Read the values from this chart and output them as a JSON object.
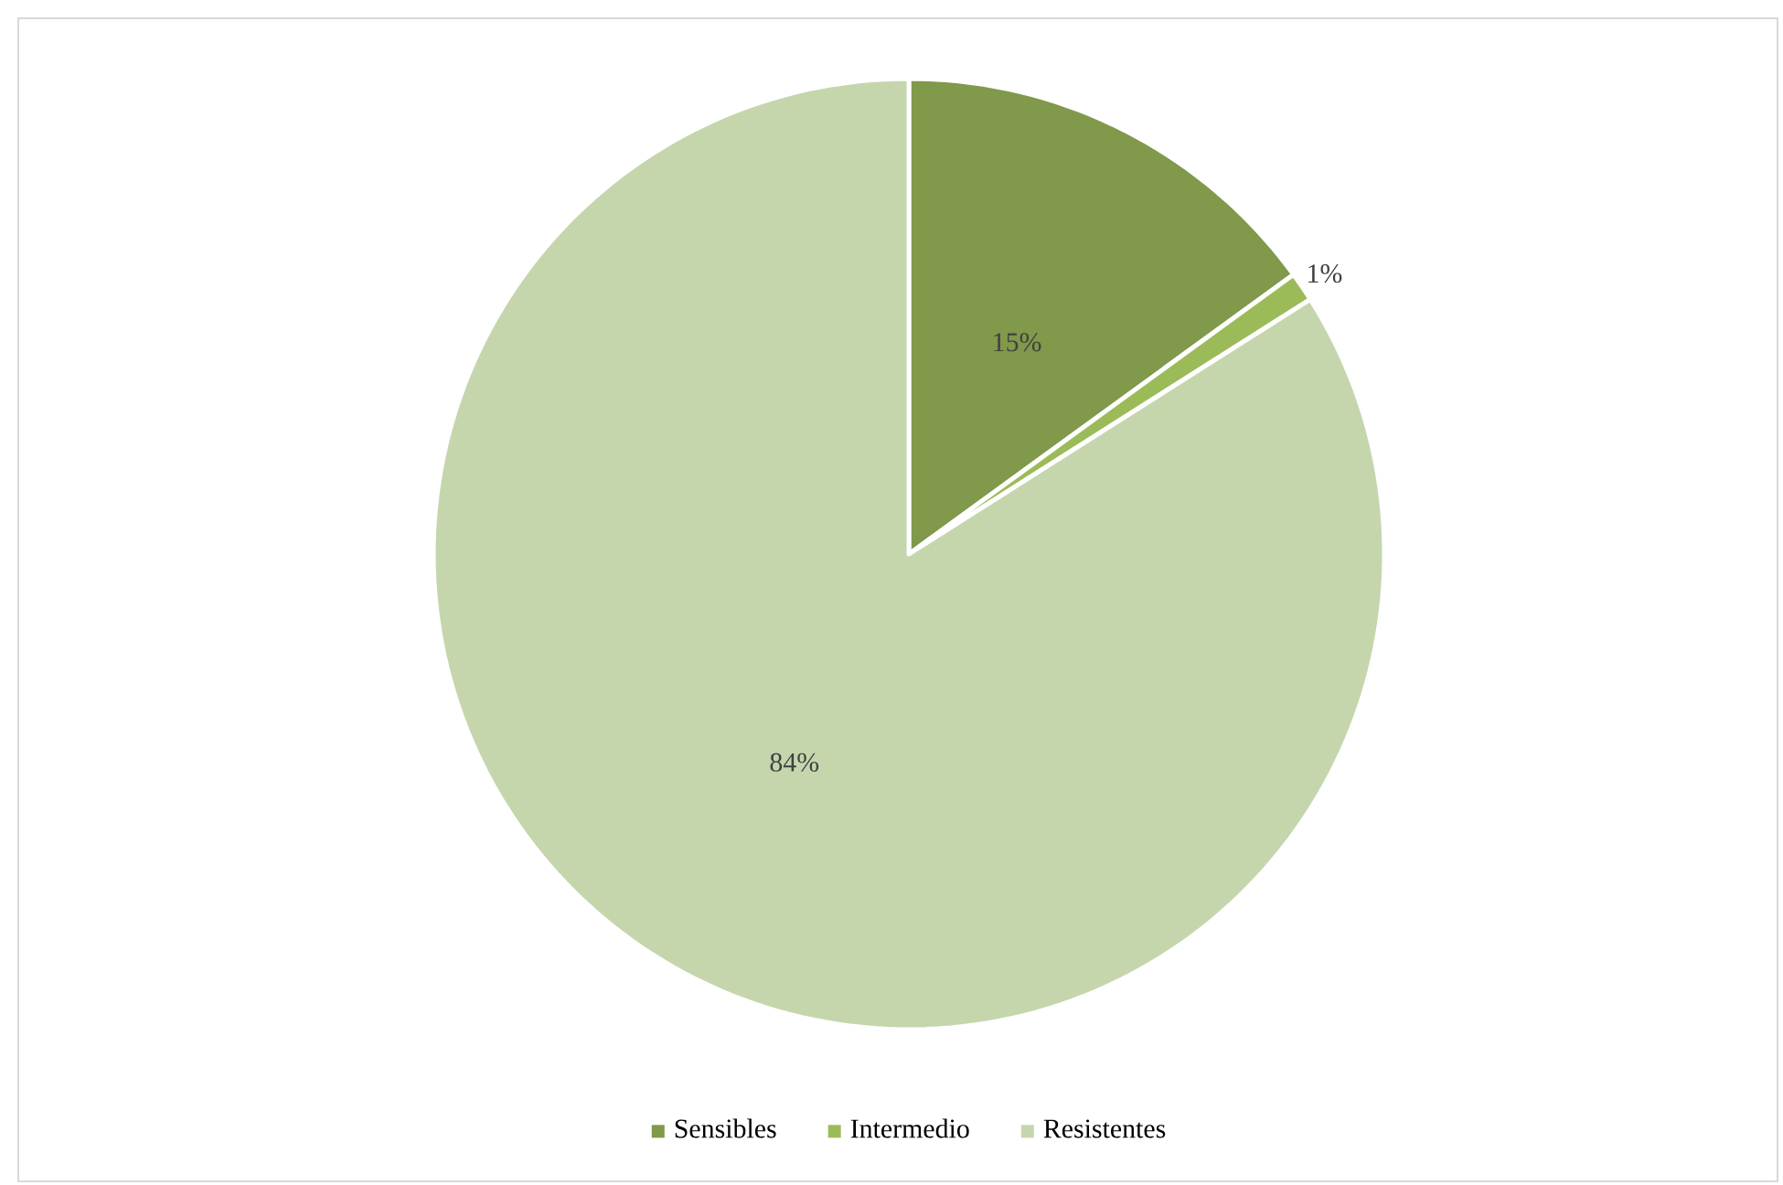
{
  "chart_data": {
    "type": "pie",
    "categories": [
      "Sensibles",
      "Intermedio",
      "Resistentes"
    ],
    "values": [
      15,
      1,
      84
    ],
    "colors": [
      "#80994a",
      "#9bbb59",
      "#c5d6ad"
    ],
    "value_labels": [
      "15%",
      "1%",
      "84%"
    ],
    "legend": "bottom"
  }
}
